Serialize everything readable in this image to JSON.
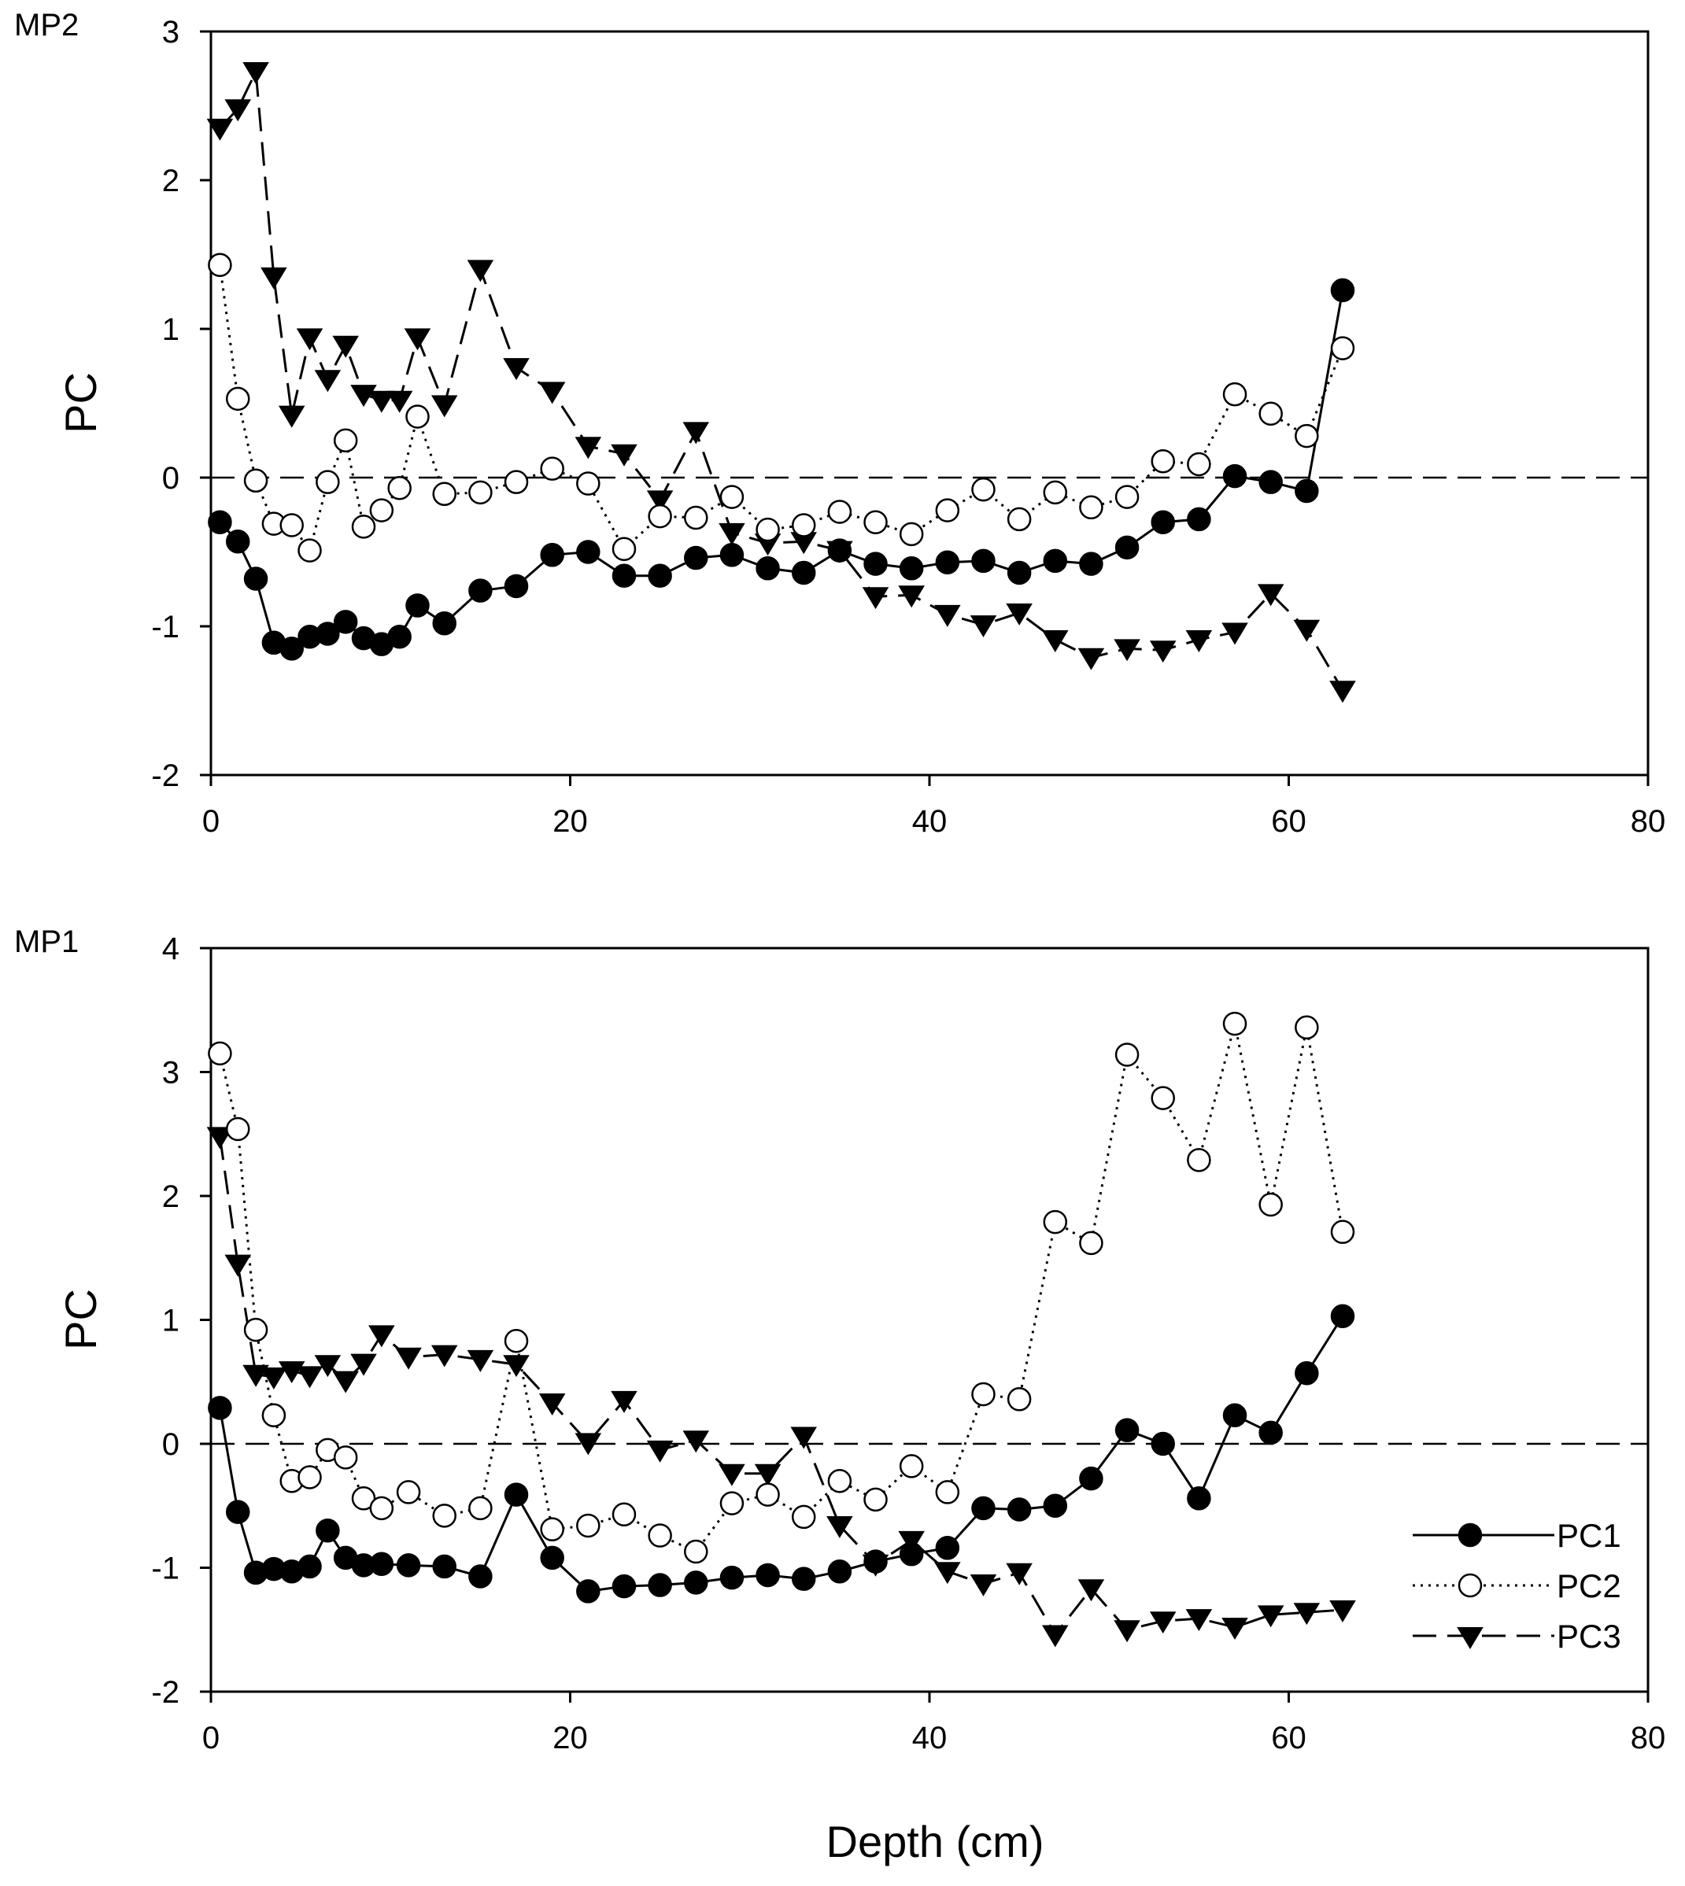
{
  "figure": {
    "xlabel": "Depth (cm)"
  },
  "chart_data": [
    {
      "type": "line",
      "title": "MP2",
      "xlabel": "Depth (cm)",
      "ylabel": "PC",
      "xlim": [
        0,
        80
      ],
      "ylim": [
        -2,
        3
      ],
      "xticks": [
        0,
        20,
        40,
        60,
        80
      ],
      "yticks": [
        -2,
        -1,
        0,
        1,
        2,
        3
      ],
      "reference_line": 0,
      "legend": false,
      "series": [
        {
          "name": "PC1",
          "marker": "filled-circle",
          "line": "solid",
          "x": [
            0.5,
            1.5,
            2.5,
            3.5,
            4.5,
            5.5,
            6.5,
            7.5,
            8.5,
            9.5,
            10.5,
            11.5,
            13,
            15,
            17,
            19,
            21,
            23,
            25,
            27,
            29,
            31,
            33,
            35,
            37,
            39,
            41,
            43,
            45,
            47,
            49,
            51,
            53,
            55,
            57,
            59,
            61,
            63
          ],
          "y": [
            -0.3,
            -0.43,
            -0.68,
            -1.11,
            -1.15,
            -1.07,
            -1.05,
            -0.97,
            -1.08,
            -1.12,
            -1.07,
            -0.86,
            -0.98,
            -0.76,
            -0.73,
            -0.52,
            -0.5,
            -0.66,
            -0.66,
            -0.54,
            -0.52,
            -0.61,
            -0.64,
            -0.49,
            -0.58,
            -0.61,
            -0.57,
            -0.56,
            -0.64,
            -0.56,
            -0.58,
            -0.47,
            -0.3,
            -0.28,
            0.01,
            -0.03,
            -0.09,
            1.26
          ]
        },
        {
          "name": "PC2",
          "marker": "open-circle",
          "line": "dotted",
          "x": [
            0.5,
            1.5,
            2.5,
            3.5,
            4.5,
            5.5,
            6.5,
            7.5,
            8.5,
            9.5,
            10.5,
            11.5,
            13,
            15,
            17,
            19,
            21,
            23,
            25,
            27,
            29,
            31,
            33,
            35,
            37,
            39,
            41,
            43,
            45,
            47,
            49,
            51,
            53,
            55,
            57,
            59,
            61,
            63
          ],
          "y": [
            1.43,
            0.53,
            -0.02,
            -0.31,
            -0.32,
            -0.49,
            -0.03,
            0.25,
            -0.33,
            -0.22,
            -0.07,
            0.41,
            -0.11,
            -0.1,
            -0.03,
            0.06,
            -0.04,
            -0.48,
            -0.26,
            -0.27,
            -0.13,
            -0.35,
            -0.32,
            -0.23,
            -0.3,
            -0.38,
            -0.22,
            -0.08,
            -0.28,
            -0.1,
            -0.2,
            -0.13,
            0.11,
            0.09,
            0.56,
            0.43,
            0.28,
            0.87
          ]
        },
        {
          "name": "PC3",
          "marker": "filled-triangle-down",
          "line": "dashed",
          "x": [
            0.5,
            1.5,
            2.5,
            3.5,
            4.5,
            5.5,
            6.5,
            7.5,
            8.5,
            9.5,
            10.5,
            11.5,
            13,
            15,
            17,
            19,
            21,
            23,
            25,
            27,
            29,
            31,
            33,
            35,
            37,
            39,
            41,
            43,
            45,
            47,
            49,
            51,
            53,
            55,
            57,
            59,
            61,
            63
          ],
          "y": [
            2.35,
            2.48,
            2.73,
            1.35,
            0.42,
            0.94,
            0.66,
            0.89,
            0.56,
            0.52,
            0.52,
            0.94,
            0.49,
            1.4,
            0.74,
            0.58,
            0.21,
            0.16,
            -0.15,
            0.31,
            -0.37,
            -0.44,
            -0.43,
            -0.49,
            -0.8,
            -0.79,
            -0.92,
            -0.99,
            -0.91,
            -1.09,
            -1.21,
            -1.15,
            -1.16,
            -1.09,
            -1.04,
            -0.78,
            -1.02,
            -1.43
          ]
        }
      ]
    },
    {
      "type": "line",
      "title": "MP1",
      "xlabel": "Depth (cm)",
      "ylabel": "PC",
      "xlim": [
        0,
        80
      ],
      "ylim": [
        -2,
        4
      ],
      "xticks": [
        0,
        20,
        40,
        60,
        80
      ],
      "yticks": [
        -2,
        -1,
        0,
        1,
        2,
        3,
        4
      ],
      "reference_line": 0,
      "legend": true,
      "legend_position": "bottom-right",
      "series": [
        {
          "name": "PC1",
          "marker": "filled-circle",
          "line": "solid",
          "x": [
            0.5,
            1.5,
            2.5,
            3.5,
            4.5,
            5.5,
            6.5,
            7.5,
            8.5,
            9.5,
            11,
            13,
            15,
            17,
            19,
            21,
            23,
            25,
            27,
            29,
            31,
            33,
            35,
            37,
            39,
            41,
            43,
            45,
            47,
            49,
            51,
            53,
            55,
            57,
            59,
            61,
            63
          ],
          "y": [
            0.29,
            -0.55,
            -1.04,
            -1.01,
            -1.03,
            -0.99,
            -0.7,
            -0.92,
            -0.98,
            -0.97,
            -0.98,
            -0.99,
            -1.07,
            -0.41,
            -0.92,
            -1.19,
            -1.15,
            -1.14,
            -1.12,
            -1.08,
            -1.06,
            -1.09,
            -1.03,
            -0.95,
            -0.89,
            -0.84,
            -0.52,
            -0.53,
            -0.5,
            -0.28,
            0.11,
            0.0,
            -0.44,
            0.23,
            0.09,
            0.57,
            1.03
          ]
        },
        {
          "name": "PC2",
          "marker": "open-circle",
          "line": "dotted",
          "x": [
            0.5,
            1.5,
            2.5,
            3.5,
            4.5,
            5.5,
            6.5,
            7.5,
            8.5,
            9.5,
            11,
            13,
            15,
            17,
            19,
            21,
            23,
            25,
            27,
            29,
            31,
            33,
            35,
            37,
            39,
            41,
            43,
            45,
            47,
            49,
            51,
            53,
            55,
            57,
            59,
            61,
            63
          ],
          "y": [
            3.15,
            2.54,
            0.92,
            0.23,
            -0.3,
            -0.27,
            -0.05,
            -0.11,
            -0.44,
            -0.52,
            -0.39,
            -0.58,
            -0.52,
            0.83,
            -0.69,
            -0.66,
            -0.57,
            -0.74,
            -0.87,
            -0.48,
            -0.41,
            -0.59,
            -0.3,
            -0.45,
            -0.18,
            -0.39,
            0.4,
            0.36,
            1.79,
            1.62,
            3.14,
            2.79,
            2.29,
            3.39,
            1.93,
            3.36,
            1.71
          ]
        },
        {
          "name": "PC3",
          "marker": "filled-triangle-down",
          "line": "dashed",
          "x": [
            0.5,
            1.5,
            2.5,
            3.5,
            4.5,
            5.5,
            6.5,
            7.5,
            8.5,
            9.5,
            11,
            13,
            15,
            17,
            19,
            21,
            23,
            25,
            27,
            29,
            31,
            33,
            35,
            37,
            39,
            41,
            43,
            45,
            47,
            49,
            51,
            53,
            55,
            57,
            59,
            61,
            63
          ],
          "y": [
            2.48,
            1.45,
            0.56,
            0.54,
            0.59,
            0.55,
            0.64,
            0.51,
            0.65,
            0.88,
            0.7,
            0.72,
            0.68,
            0.64,
            0.33,
            0.01,
            0.35,
            -0.05,
            0.03,
            -0.24,
            -0.24,
            0.06,
            -0.66,
            -0.97,
            -0.78,
            -1.03,
            -1.13,
            -1.04,
            -1.54,
            -1.17,
            -1.5,
            -1.43,
            -1.41,
            -1.48,
            -1.38,
            -1.36,
            -1.34
          ]
        }
      ]
    }
  ]
}
